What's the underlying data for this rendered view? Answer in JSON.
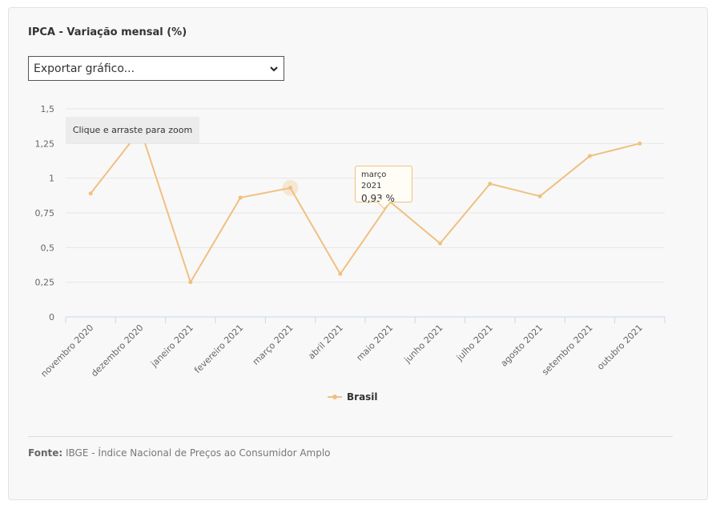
{
  "title": "IPCA - Variação mensal (%)",
  "export": {
    "label": "Exportar gráfico..."
  },
  "zoom_hint": "Clique e arraste para zoom",
  "tooltip": {
    "date": "março 2021",
    "value": "0,93 %"
  },
  "footer": {
    "source_label": "Fonte:",
    "source_text": "IBGE - Índice Nacional de Preços ao Consumidor Amplo"
  },
  "colors": {
    "series": "#f0c080",
    "grid": "#e6e6e6",
    "axis": "#ccd6eb",
    "text": "#666666"
  },
  "chart_data": {
    "type": "line",
    "categories": [
      "novembro 2020",
      "dezembro 2020",
      "janeiro 2021",
      "fevereiro 2021",
      "março 2021",
      "abril 2021",
      "maio 2021",
      "junho 2021",
      "julho 2021",
      "agosto 2021",
      "setembro 2021",
      "outubro 2021"
    ],
    "series": [
      {
        "name": "Brasil",
        "values": [
          0.89,
          1.35,
          0.25,
          0.86,
          0.93,
          0.31,
          0.83,
          0.53,
          0.96,
          0.87,
          1.16,
          1.25
        ]
      }
    ],
    "yticks": [
      "0",
      "0,25",
      "0,5",
      "0,75",
      "1",
      "1,25",
      "1,5"
    ],
    "ylim": [
      0,
      1.5
    ],
    "highlighted_category": "março 2021",
    "grid": true,
    "legend": "bottom-center"
  }
}
